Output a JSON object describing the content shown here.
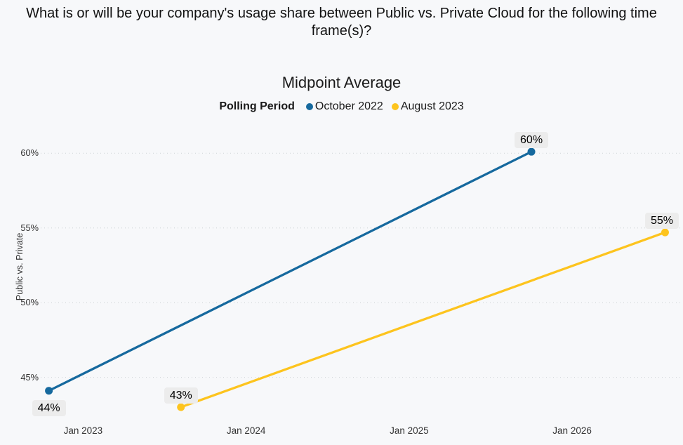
{
  "header": {
    "title": "What is or will be your company's usage share between Public vs. Private Cloud for the following time frame(s)?"
  },
  "chart_data": {
    "type": "line",
    "title": "Midpoint Average",
    "legend": {
      "title": "Polling Period",
      "position": "top"
    },
    "ylabel": "Public vs. Private",
    "xlabel": "",
    "background": "#f7f8fa",
    "grid": "horizontal-dotted",
    "grid_color": "#d4d7da",
    "label_box_bg": "#ececec",
    "tick_color": "#333333",
    "ylim": [
      42.3,
      61.8
    ],
    "xlim": [
      2022.74,
      2026.68
    ],
    "yticks": [
      {
        "value": 60,
        "label": "60%"
      },
      {
        "value": 55,
        "label": "55%"
      },
      {
        "value": 50,
        "label": "50%"
      },
      {
        "value": 45,
        "label": "45%"
      }
    ],
    "xticks": [
      {
        "value": 2023,
        "label": "Jan 2023"
      },
      {
        "value": 2024,
        "label": "Jan 2024"
      },
      {
        "value": 2025,
        "label": "Jan 2025"
      },
      {
        "value": 2026,
        "label": "Jan 2026"
      }
    ],
    "series": [
      {
        "name": "October 2022",
        "color": "#16699e",
        "points": [
          {
            "x": 2022.79,
            "y": 44.1,
            "label": "44%",
            "label_pos": "below"
          },
          {
            "x": 2025.75,
            "y": 60.1,
            "label": "60%",
            "label_pos": "above"
          }
        ]
      },
      {
        "name": "August 2023",
        "color": "#fdc41e",
        "points": [
          {
            "x": 2023.6,
            "y": 43.0,
            "label": "43%",
            "label_pos": "above"
          },
          {
            "x": 2026.57,
            "y": 54.7,
            "label": "55%",
            "label_pos": "above"
          }
        ]
      }
    ]
  }
}
